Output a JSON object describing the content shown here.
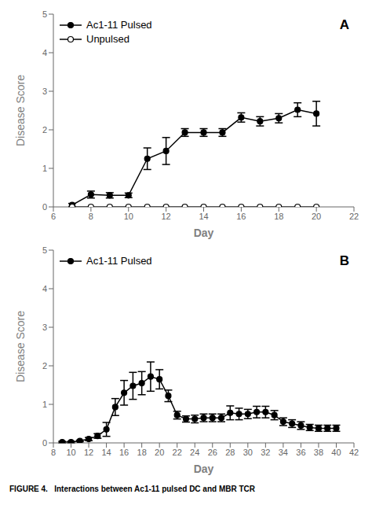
{
  "chart_data": [
    {
      "type": "line",
      "x": [
        7,
        8,
        9,
        10,
        11,
        12,
        13,
        14,
        15,
        16,
        17,
        18,
        19,
        20
      ],
      "xlabel": "Day",
      "ylabel": "Disease Score",
      "xlim": [
        6,
        22
      ],
      "ylim": [
        0,
        5
      ],
      "xticks": [
        6,
        8,
        10,
        12,
        14,
        16,
        18,
        20,
        22
      ],
      "yticks": [
        0,
        1,
        2,
        3,
        4,
        5
      ],
      "grid": false,
      "legend": "upper left",
      "annotations": [
        "A"
      ],
      "series": [
        {
          "name": "Ac1-11 Pulsed",
          "color": "#000000",
          "marker": "circle",
          "values": [
            0.05,
            0.32,
            0.3,
            0.3,
            1.25,
            1.45,
            1.93,
            1.93,
            1.93,
            2.32,
            2.22,
            2.3,
            2.52,
            2.42
          ],
          "error": [
            0.04,
            0.09,
            0.07,
            0.06,
            0.28,
            0.35,
            0.1,
            0.1,
            0.1,
            0.12,
            0.12,
            0.12,
            0.18,
            0.32
          ]
        },
        {
          "name": "Unpulsed",
          "color": "#000000",
          "marker": "circle_open",
          "values": [
            0.0,
            0.0,
            0.0,
            0.0,
            0.0,
            0.0,
            0.0,
            0.0,
            0.0,
            0.0,
            0.0,
            0.0,
            0.0,
            0.0
          ],
          "error": [
            0.0,
            0.0,
            0.0,
            0.0,
            0.0,
            0.0,
            0.0,
            0.0,
            0.0,
            0.0,
            0.0,
            0.0,
            0.0,
            0.0
          ]
        }
      ]
    },
    {
      "type": "line",
      "x": [
        9,
        10,
        11,
        12,
        13,
        14,
        15,
        16,
        17,
        18,
        19,
        20,
        21,
        22,
        23,
        24,
        25,
        26,
        27,
        28,
        29,
        30,
        31,
        32,
        33,
        34,
        35,
        36,
        37,
        38,
        39,
        40
      ],
      "xlabel": "Day",
      "ylabel": "Disease Score",
      "xlim": [
        8,
        42
      ],
      "ylim": [
        0,
        5
      ],
      "xticks": [
        8,
        10,
        12,
        14,
        16,
        18,
        20,
        22,
        24,
        26,
        28,
        30,
        32,
        34,
        36,
        38,
        40,
        42
      ],
      "yticks": [
        0,
        1,
        2,
        3,
        4,
        5
      ],
      "grid": false,
      "legend": "upper left",
      "annotations": [
        "B",
        "FIGURE 4.   Interactions between Ac1-11 pulsed DC and MBR TCR"
      ],
      "series": [
        {
          "name": "Ac1-11 Pulsed",
          "color": "#000000",
          "marker": "circle",
          "values": [
            0.02,
            0.02,
            0.05,
            0.1,
            0.18,
            0.35,
            0.93,
            1.3,
            1.48,
            1.55,
            1.72,
            1.65,
            1.22,
            0.72,
            0.62,
            0.62,
            0.65,
            0.65,
            0.65,
            0.78,
            0.75,
            0.75,
            0.8,
            0.8,
            0.72,
            0.55,
            0.5,
            0.45,
            0.4,
            0.38,
            0.38,
            0.38
          ],
          "error": [
            0.02,
            0.02,
            0.02,
            0.04,
            0.06,
            0.18,
            0.22,
            0.32,
            0.35,
            0.3,
            0.38,
            0.25,
            0.15,
            0.1,
            0.08,
            0.1,
            0.1,
            0.1,
            0.1,
            0.18,
            0.15,
            0.12,
            0.15,
            0.15,
            0.12,
            0.1,
            0.1,
            0.1,
            0.08,
            0.08,
            0.08,
            0.08
          ]
        }
      ]
    }
  ]
}
